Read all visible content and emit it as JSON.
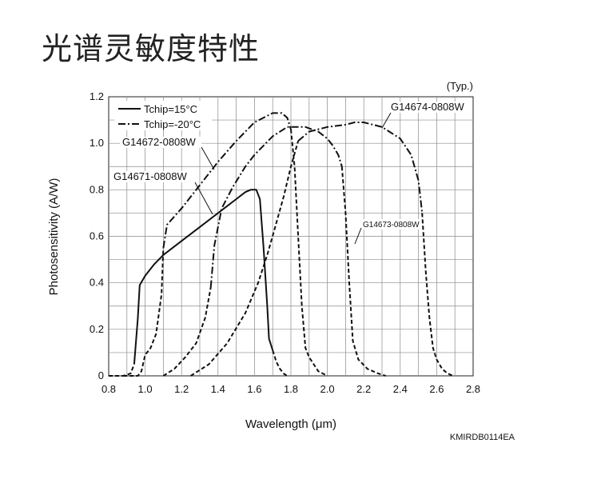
{
  "page_title": "光谱灵敏度特性",
  "chart_data": {
    "type": "line",
    "title": "",
    "xlabel": "Wavelength (μm)",
    "ylabel": "Photosensitivity (A/W)",
    "xlim": [
      0.8,
      2.8
    ],
    "ylim": [
      0,
      1.2
    ],
    "x_ticks": [
      0.8,
      1.0,
      1.2,
      1.4,
      1.6,
      1.8,
      2.0,
      2.2,
      2.4,
      2.6,
      2.8
    ],
    "y_ticks": [
      0,
      0.2,
      0.4,
      0.6,
      0.8,
      1.0,
      1.2
    ],
    "x_tick_labels": [
      "0.8",
      "1.0",
      "1.2",
      "1.4",
      "1.6",
      "1.8",
      "2.0",
      "2.2",
      "2.4",
      "2.6",
      "2.8"
    ],
    "y_tick_labels": [
      "0",
      "0.2",
      "0.4",
      "0.6",
      "0.8",
      "1.0",
      "1.2"
    ],
    "grid": true,
    "note": "(Typ.)",
    "code": "KMIRDB0114EA",
    "legend": {
      "placement": "top-left",
      "entries": [
        {
          "label": "Tchip=15°C",
          "style": "solid"
        },
        {
          "label": "Tchip=-20°C",
          "style": "dash-dot"
        }
      ]
    },
    "series": [
      {
        "name": "G14671-0808W",
        "segments": [
          {
            "style": "dash",
            "x": [
              0.8,
              0.88,
              0.92,
              0.94
            ],
            "y": [
              0.0,
              0.0,
              0.01,
              0.05
            ]
          },
          {
            "style": "solid",
            "x": [
              0.94,
              0.96,
              0.97,
              1.0,
              1.05,
              1.1,
              1.2,
              1.3,
              1.4,
              1.5,
              1.55,
              1.58,
              1.61,
              1.63,
              1.65,
              1.67,
              1.68,
              1.7
            ],
            "y": [
              0.05,
              0.25,
              0.39,
              0.43,
              0.48,
              0.52,
              0.58,
              0.64,
              0.7,
              0.76,
              0.79,
              0.8,
              0.8,
              0.76,
              0.55,
              0.3,
              0.16,
              0.11
            ]
          },
          {
            "style": "dash",
            "x": [
              1.7,
              1.72,
              1.74,
              1.76,
              1.78
            ],
            "y": [
              0.11,
              0.06,
              0.03,
              0.01,
              0.0
            ]
          }
        ]
      },
      {
        "name": "G14672-0808W",
        "segments": [
          {
            "style": "dash",
            "x": [
              0.88,
              0.96,
              0.98,
              1.0,
              1.03,
              1.06,
              1.09,
              1.1
            ],
            "y": [
              0.0,
              0.0,
              0.02,
              0.09,
              0.12,
              0.18,
              0.35,
              0.55
            ]
          },
          {
            "style": "dash-dot",
            "x": [
              1.1,
              1.12,
              1.2,
              1.3,
              1.4,
              1.5,
              1.6,
              1.7,
              1.75,
              1.78,
              1.8
            ],
            "y": [
              0.55,
              0.65,
              0.72,
              0.82,
              0.92,
              1.01,
              1.09,
              1.13,
              1.13,
              1.11,
              1.06
            ]
          },
          {
            "style": "dash",
            "x": [
              1.8,
              1.82,
              1.84,
              1.86,
              1.88,
              1.9,
              1.95,
              2.0
            ],
            "y": [
              1.06,
              0.9,
              0.6,
              0.3,
              0.12,
              0.08,
              0.02,
              0.0
            ]
          }
        ]
      },
      {
        "name": "G14673-0808W",
        "segments": [
          {
            "style": "dash",
            "x": [
              1.1,
              1.16,
              1.22,
              1.28,
              1.33,
              1.36
            ],
            "y": [
              0.0,
              0.03,
              0.08,
              0.14,
              0.25,
              0.38
            ]
          },
          {
            "style": "dash-dot",
            "x": [
              1.36,
              1.38,
              1.42,
              1.48,
              1.55,
              1.6,
              1.7,
              1.78,
              1.82,
              1.88,
              1.95,
              2.0,
              2.03,
              2.06,
              2.08
            ],
            "y": [
              0.38,
              0.56,
              0.72,
              0.81,
              0.9,
              0.95,
              1.03,
              1.07,
              1.07,
              1.07,
              1.05,
              1.02,
              0.99,
              0.95,
              0.9
            ]
          },
          {
            "style": "dash",
            "x": [
              2.08,
              2.1,
              2.12,
              2.14,
              2.17,
              2.22,
              2.28,
              2.32
            ],
            "y": [
              0.9,
              0.7,
              0.4,
              0.15,
              0.07,
              0.03,
              0.01,
              0.0
            ]
          }
        ]
      },
      {
        "name": "G14674-0808W",
        "segments": [
          {
            "style": "dash",
            "x": [
              1.25,
              1.35,
              1.45,
              1.55,
              1.62,
              1.67,
              1.71,
              1.76,
              1.8,
              1.84
            ],
            "y": [
              0.0,
              0.05,
              0.14,
              0.27,
              0.4,
              0.52,
              0.63,
              0.77,
              0.9,
              1.01
            ]
          },
          {
            "style": "dash-dot",
            "x": [
              1.84,
              1.9,
              2.0,
              2.1,
              2.15,
              2.2,
              2.3,
              2.4,
              2.46,
              2.5,
              2.52
            ],
            "y": [
              1.01,
              1.05,
              1.07,
              1.08,
              1.09,
              1.09,
              1.07,
              1.02,
              0.95,
              0.84,
              0.7
            ]
          },
          {
            "style": "dash",
            "x": [
              2.52,
              2.54,
              2.56,
              2.58,
              2.6,
              2.63,
              2.66,
              2.69
            ],
            "y": [
              0.7,
              0.45,
              0.25,
              0.12,
              0.07,
              0.03,
              0.01,
              0.0
            ]
          }
        ]
      }
    ]
  }
}
